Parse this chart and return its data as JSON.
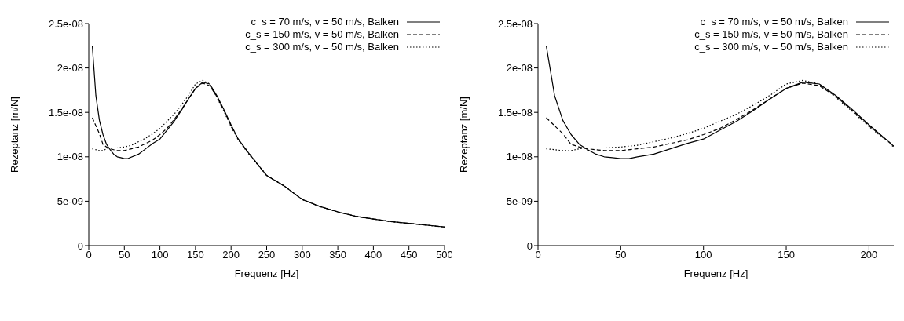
{
  "chart_data": [
    {
      "type": "line",
      "xlabel": "Frequenz [Hz]",
      "ylabel": "Rezeptanz [m/N]",
      "xlim": [
        0,
        500
      ],
      "xticks": [
        0,
        50,
        100,
        150,
        200,
        250,
        300,
        350,
        400,
        450,
        500
      ],
      "ylim": [
        0,
        2.5e-08
      ],
      "yticks": [
        {
          "value": 0,
          "label": "0"
        },
        {
          "value": 5e-09,
          "label": "5e-09"
        },
        {
          "value": 1e-08,
          "label": "1e-08"
        },
        {
          "value": 1.5e-08,
          "label": "1.5e-08"
        },
        {
          "value": 2e-08,
          "label": "2e-08"
        },
        {
          "value": 2.5e-08,
          "label": "2.5e-08"
        }
      ],
      "grid": false,
      "legend": "top right",
      "series": [
        {
          "name": "c_s = 70 m/s, v = 50 m/s, Balken",
          "color": "#000000",
          "line_style": "solid",
          "x": [
            5,
            10,
            15,
            20,
            25,
            30,
            35,
            40,
            45,
            50,
            55,
            70,
            80,
            90,
            100,
            110,
            120,
            130,
            140,
            150,
            160,
            170,
            180,
            190,
            200,
            210,
            225,
            250,
            275,
            300,
            325,
            350,
            375,
            400,
            425,
            450,
            475,
            500
          ],
          "values": [
            2.25e-08,
            1.69e-08,
            1.41e-08,
            1.25e-08,
            1.14e-08,
            1.08e-08,
            1.03e-08,
            1e-08,
            9.9e-09,
            9.8e-09,
            9.8e-09,
            1.03e-08,
            1.09e-08,
            1.15e-08,
            1.2e-08,
            1.3e-08,
            1.4e-08,
            1.52e-08,
            1.65e-08,
            1.77e-08,
            1.84e-08,
            1.82e-08,
            1.69e-08,
            1.53e-08,
            1.36e-08,
            1.2e-08,
            1.04e-08,
            7.9e-09,
            6.7e-09,
            5.2e-09,
            4.4e-09,
            3.8e-09,
            3.3e-09,
            3e-09,
            2.7e-09,
            2.5e-09,
            2.3e-09,
            2.1e-09
          ]
        },
        {
          "name": "c_s = 150 m/s, v = 50 m/s, Balken",
          "color": "#000000",
          "line_style": "dashed",
          "x": [
            5,
            10,
            15,
            20,
            25,
            30,
            40,
            50,
            60,
            70,
            80,
            90,
            100,
            110,
            120,
            130,
            140,
            150,
            160,
            170,
            180,
            190,
            200,
            210,
            225,
            250,
            275,
            300,
            325,
            350,
            375,
            400,
            425,
            450,
            475,
            500
          ],
          "values": [
            1.44e-08,
            1.35e-08,
            1.26e-08,
            1.14e-08,
            1.11e-08,
            1.09e-08,
            1.07e-08,
            1.07e-08,
            1.09e-08,
            1.11e-08,
            1.15e-08,
            1.19e-08,
            1.25e-08,
            1.32e-08,
            1.42e-08,
            1.53e-08,
            1.65e-08,
            1.77e-08,
            1.83e-08,
            1.8e-08,
            1.68e-08,
            1.52e-08,
            1.35e-08,
            1.2e-08,
            1.04e-08,
            7.9e-09,
            6.7e-09,
            5.2e-09,
            4.4e-09,
            3.8e-09,
            3.3e-09,
            3e-09,
            2.7e-09,
            2.5e-09,
            2.3e-09,
            2.1e-09
          ]
        },
        {
          "name": "c_s = 300 m/s, v = 50 m/s, Balken",
          "color": "#000000",
          "line_style": "dotted",
          "x": [
            5,
            10,
            15,
            20,
            25,
            30,
            40,
            50,
            60,
            70,
            80,
            90,
            100,
            110,
            120,
            130,
            140,
            150,
            160,
            170,
            180,
            190,
            200,
            210,
            225,
            250,
            275,
            300,
            325,
            350,
            375,
            400,
            425,
            450,
            475,
            500
          ],
          "values": [
            1.09e-08,
            1.08e-08,
            1.07e-08,
            1.07e-08,
            1.09e-08,
            1.1e-08,
            1.1e-08,
            1.11e-08,
            1.13e-08,
            1.17e-08,
            1.21e-08,
            1.26e-08,
            1.32e-08,
            1.4e-08,
            1.48e-08,
            1.58e-08,
            1.69e-08,
            1.82e-08,
            1.86e-08,
            1.82e-08,
            1.67e-08,
            1.51e-08,
            1.34e-08,
            1.19e-08,
            1.03e-08,
            7.9e-09,
            6.7e-09,
            5.2e-09,
            4.4e-09,
            3.8e-09,
            3.3e-09,
            3e-09,
            2.7e-09,
            2.5e-09,
            2.3e-09,
            2.1e-09
          ]
        }
      ]
    },
    {
      "type": "line",
      "xlabel": "Frequenz [Hz]",
      "ylabel": "Rezeptanz [m/N]",
      "xlim": [
        0,
        215
      ],
      "xticks": [
        0,
        50,
        100,
        150,
        200
      ],
      "ylim": [
        0,
        2.5e-08
      ],
      "yticks": [
        {
          "value": 0,
          "label": "0"
        },
        {
          "value": 5e-09,
          "label": "5e-09"
        },
        {
          "value": 1e-08,
          "label": "1e-08"
        },
        {
          "value": 1.5e-08,
          "label": "1.5e-08"
        },
        {
          "value": 2e-08,
          "label": "2e-08"
        },
        {
          "value": 2.5e-08,
          "label": "2.5e-08"
        }
      ],
      "grid": false,
      "legend": "top right",
      "series": [
        {
          "name": "c_s = 70 m/s, v = 50 m/s, Balken",
          "color": "#000000",
          "line_style": "solid",
          "x": [
            5,
            10,
            15,
            20,
            25,
            30,
            35,
            40,
            45,
            50,
            55,
            60,
            70,
            80,
            90,
            100,
            110,
            120,
            130,
            140,
            150,
            160,
            170,
            180,
            190,
            200,
            210,
            215
          ],
          "values": [
            2.25e-08,
            1.69e-08,
            1.41e-08,
            1.25e-08,
            1.14e-08,
            1.08e-08,
            1.03e-08,
            1e-08,
            9.9e-09,
            9.8e-09,
            9.8e-09,
            1e-08,
            1.03e-08,
            1.09e-08,
            1.15e-08,
            1.2e-08,
            1.3e-08,
            1.4e-08,
            1.52e-08,
            1.65e-08,
            1.77e-08,
            1.84e-08,
            1.82e-08,
            1.69e-08,
            1.53e-08,
            1.36e-08,
            1.2e-08,
            1.12e-08
          ]
        },
        {
          "name": "c_s = 150 m/s, v = 50 m/s, Balken",
          "color": "#000000",
          "line_style": "dashed",
          "x": [
            5,
            10,
            15,
            20,
            25,
            30,
            40,
            50,
            60,
            70,
            80,
            90,
            100,
            110,
            120,
            130,
            140,
            150,
            160,
            170,
            180,
            190,
            200,
            210,
            215
          ],
          "values": [
            1.44e-08,
            1.35e-08,
            1.26e-08,
            1.14e-08,
            1.11e-08,
            1.09e-08,
            1.07e-08,
            1.07e-08,
            1.09e-08,
            1.11e-08,
            1.15e-08,
            1.19e-08,
            1.25e-08,
            1.32e-08,
            1.42e-08,
            1.53e-08,
            1.65e-08,
            1.77e-08,
            1.83e-08,
            1.8e-08,
            1.68e-08,
            1.52e-08,
            1.35e-08,
            1.2e-08,
            1.12e-08
          ]
        },
        {
          "name": "c_s = 300 m/s, v = 50 m/s, Balken",
          "color": "#000000",
          "line_style": "dotted",
          "x": [
            5,
            10,
            15,
            20,
            25,
            30,
            40,
            50,
            60,
            70,
            80,
            90,
            100,
            110,
            120,
            130,
            140,
            150,
            160,
            170,
            180,
            190,
            200,
            210,
            215
          ],
          "values": [
            1.09e-08,
            1.08e-08,
            1.07e-08,
            1.07e-08,
            1.09e-08,
            1.1e-08,
            1.1e-08,
            1.11e-08,
            1.13e-08,
            1.17e-08,
            1.21e-08,
            1.26e-08,
            1.32e-08,
            1.4e-08,
            1.48e-08,
            1.58e-08,
            1.69e-08,
            1.82e-08,
            1.86e-08,
            1.82e-08,
            1.67e-08,
            1.51e-08,
            1.34e-08,
            1.19e-08,
            1.11e-08
          ]
        }
      ]
    }
  ]
}
